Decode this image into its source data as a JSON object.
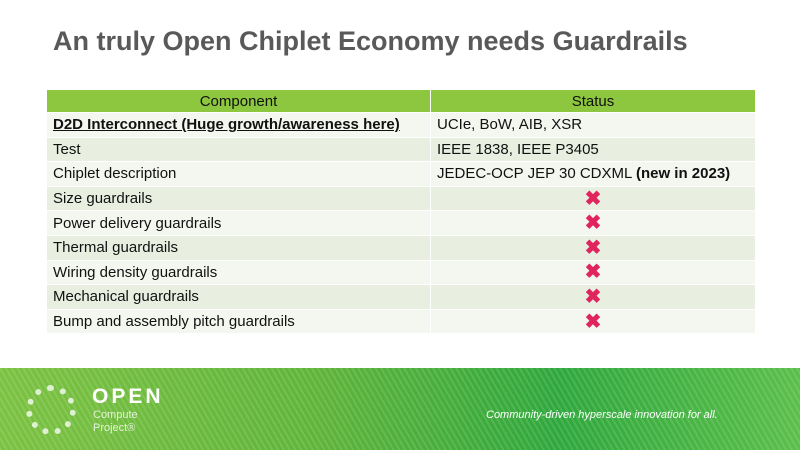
{
  "title": "An truly Open Chiplet Economy needs Guardrails",
  "table": {
    "headers": [
      "Component",
      "Status"
    ],
    "rows": [
      {
        "component": "D2D Interconnect (Huge growth/awareness here)",
        "status": "UCIe, BoW, AIB, XSR"
      },
      {
        "component": "Test",
        "status": "IEEE 1838, IEEE P3405"
      },
      {
        "component": "Chiplet description",
        "status": "JEDEC-OCP JEP 30 CDXML",
        "status_bold": "(new in 2023)"
      },
      {
        "component": "Size guardrails",
        "status": "✖"
      },
      {
        "component": "Power delivery guardrails",
        "status": "✖"
      },
      {
        "component": "Thermal guardrails",
        "status": "✖"
      },
      {
        "component": "Wiring density guardrails",
        "status": "✖"
      },
      {
        "component": "Mechanical guardrails",
        "status": "✖"
      },
      {
        "component": "Bump and assembly pitch guardrails",
        "status": "✖"
      }
    ]
  },
  "footer": {
    "logo_open": "OPEN",
    "logo_compute": "Compute",
    "logo_project": "Project®",
    "tagline": "Community-driven hyperscale innovation for all."
  },
  "colors": {
    "header_green": "#8dc63f",
    "cross_red": "#e0245e"
  }
}
